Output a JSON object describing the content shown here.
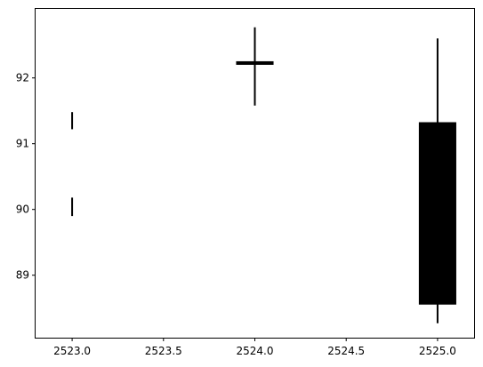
{
  "chart_data": {
    "type": "candlestick",
    "title": "",
    "xlabel": "",
    "ylabel": "",
    "xlim": [
      2522.8,
      2525.2
    ],
    "ylim": [
      88.05,
      93.05
    ],
    "x_ticks": [
      2523.0,
      2523.5,
      2524.0,
      2524.5,
      2525.0
    ],
    "x_tick_labels": [
      "2523.0",
      "2523.5",
      "2524.0",
      "2524.5",
      "2525.0"
    ],
    "y_ticks": [
      89,
      90,
      91,
      92
    ],
    "y_tick_labels": [
      "89",
      "90",
      "91",
      "92"
    ],
    "grid": false,
    "candles": [
      {
        "x": 2523.0,
        "open": 89.9,
        "close": 90.18,
        "low": 89.9,
        "high": 90.18
      },
      {
        "x": 2523.0,
        "open": 91.22,
        "close": 91.48,
        "low": 91.22,
        "high": 91.48
      },
      {
        "x": 2524.0,
        "open": 92.22,
        "close": 92.24,
        "low": 91.58,
        "high": 92.77
      },
      {
        "x": 2525.0,
        "open": 88.56,
        "close": 91.32,
        "low": 88.27,
        "high": 92.6
      }
    ],
    "colors": {
      "candle": "#000000",
      "axis": "#000000",
      "background": "#ffffff"
    }
  }
}
